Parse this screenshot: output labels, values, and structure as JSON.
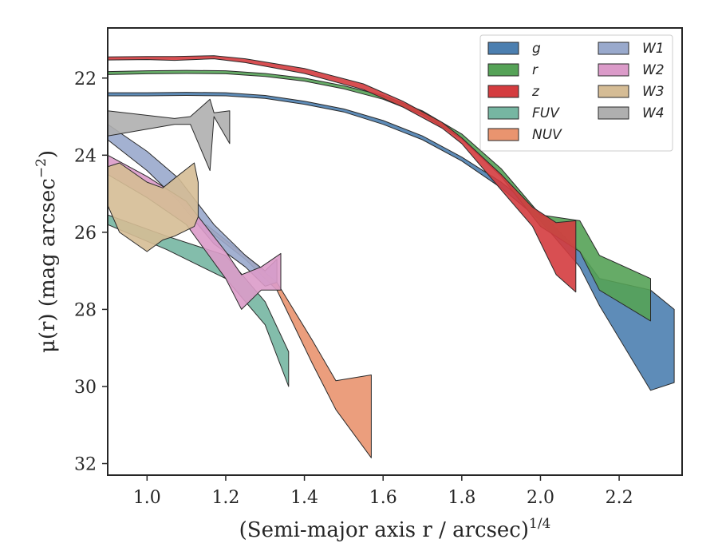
{
  "chart_data": {
    "type": "area",
    "xlabel": "(Semi-major axis r / arcsec)",
    "xlabel_var": "r",
    "xlabel_exp": "1/4",
    "ylabel": "μ(r) (mag arcsec",
    "ylabel_exp": "−2",
    "xlim": [
      0.9,
      2.36
    ],
    "ylim": [
      32.3,
      20.7
    ],
    "y_inverted": true,
    "xticks": [
      1.0,
      1.2,
      1.4,
      1.6,
      1.8,
      2.0,
      2.2
    ],
    "xtick_labels": [
      "1.0",
      "1.2",
      "1.4",
      "1.6",
      "1.8",
      "2.0",
      "2.2"
    ],
    "yticks": [
      22,
      24,
      26,
      28,
      30,
      32
    ],
    "ytick_labels": [
      "22",
      "24",
      "26",
      "28",
      "30",
      "32"
    ],
    "grid": false,
    "legend_position": "top-right",
    "legend_columns": 2,
    "series": [
      {
        "name": "g",
        "color": "#4c7fb0",
        "x": [
          0.9,
          1.0,
          1.1,
          1.2,
          1.3,
          1.4,
          1.5,
          1.6,
          1.7,
          1.8,
          1.9,
          2.0,
          2.1,
          2.15,
          2.28,
          2.34
        ],
        "lower": [
          22.38,
          22.38,
          22.37,
          22.38,
          22.45,
          22.6,
          22.8,
          23.1,
          23.5,
          24.05,
          24.7,
          25.5,
          26.5,
          27.2,
          27.5,
          28.0
        ],
        "upper": [
          22.46,
          22.46,
          22.45,
          22.46,
          22.53,
          22.68,
          22.88,
          23.2,
          23.6,
          24.15,
          24.85,
          25.7,
          26.9,
          27.9,
          30.1,
          29.9
        ]
      },
      {
        "name": "r",
        "color": "#55a257",
        "x": [
          0.9,
          1.0,
          1.1,
          1.2,
          1.3,
          1.4,
          1.5,
          1.6,
          1.7,
          1.8,
          1.9,
          2.0,
          2.1,
          2.15,
          2.28
        ],
        "lower": [
          21.83,
          21.81,
          21.8,
          21.81,
          21.88,
          22.0,
          22.2,
          22.45,
          22.85,
          23.45,
          24.35,
          25.55,
          25.7,
          26.6,
          27.2
        ],
        "upper": [
          21.91,
          21.89,
          21.88,
          21.89,
          21.96,
          22.08,
          22.28,
          22.55,
          22.95,
          23.58,
          24.55,
          25.85,
          26.5,
          27.5,
          28.3
        ]
      },
      {
        "name": "z",
        "color": "#d43c3f",
        "x": [
          0.9,
          1.0,
          1.07,
          1.17,
          1.25,
          1.4,
          1.55,
          1.65,
          1.75,
          1.8,
          1.9,
          1.98,
          2.04,
          2.09
        ],
        "lower": [
          21.45,
          21.44,
          21.44,
          21.42,
          21.5,
          21.75,
          22.15,
          22.6,
          23.15,
          23.55,
          24.5,
          25.35,
          25.75,
          25.7
        ],
        "upper": [
          21.53,
          21.52,
          21.54,
          21.5,
          21.6,
          21.88,
          22.3,
          22.75,
          23.3,
          23.7,
          24.9,
          25.85,
          27.1,
          27.55
        ]
      },
      {
        "name": "FUV",
        "color": "#76b6a2",
        "x": [
          0.9,
          1.05,
          1.2,
          1.3,
          1.36
        ],
        "lower": [
          25.55,
          26.1,
          26.6,
          27.8,
          29.1
        ],
        "upper": [
          25.8,
          26.45,
          27.2,
          28.4,
          30.0
        ]
      },
      {
        "name": "NUV",
        "color": "#e9946f",
        "x": [
          1.15,
          1.25,
          1.33,
          1.42,
          1.48,
          1.57
        ],
        "lower": [
          25.8,
          26.6,
          27.3,
          28.8,
          29.85,
          29.7
        ],
        "upper": [
          25.9,
          26.7,
          27.5,
          29.4,
          30.6,
          31.85
        ]
      },
      {
        "name": "W1",
        "color": "#99a9cc",
        "x": [
          0.9,
          1.0,
          1.08,
          1.17,
          1.25,
          1.3,
          1.33
        ],
        "lower": [
          23.2,
          23.9,
          24.6,
          25.8,
          26.6,
          27.0,
          26.7
        ],
        "upper": [
          23.6,
          24.4,
          25.2,
          26.3,
          26.9,
          27.4,
          27.3
        ]
      },
      {
        "name": "W2",
        "color": "#db9bc9",
        "x": [
          0.9,
          1.0,
          1.1,
          1.2,
          1.24,
          1.29,
          1.34
        ],
        "lower": [
          24.0,
          24.55,
          25.2,
          26.5,
          27.1,
          26.9,
          26.55
        ],
        "upper": [
          24.5,
          25.1,
          25.8,
          27.2,
          28.0,
          27.5,
          27.5
        ]
      },
      {
        "name": "W3",
        "color": "#d5bc95",
        "x": [
          0.9,
          0.93,
          1.0,
          1.04,
          1.07,
          1.12,
          1.13
        ],
        "lower": [
          24.3,
          24.2,
          24.7,
          24.85,
          24.6,
          24.2,
          24.7
        ],
        "upper": [
          25.3,
          26.0,
          26.5,
          26.2,
          26.1,
          25.85,
          25.6
        ]
      },
      {
        "name": "W4",
        "color": "#afafaf",
        "x": [
          0.9,
          1.07,
          1.11,
          1.16,
          1.17,
          1.21
        ],
        "lower": [
          22.85,
          23.05,
          23.0,
          22.55,
          22.9,
          22.85
        ],
        "upper": [
          23.5,
          23.2,
          23.2,
          24.4,
          23.0,
          23.7
        ]
      }
    ]
  }
}
